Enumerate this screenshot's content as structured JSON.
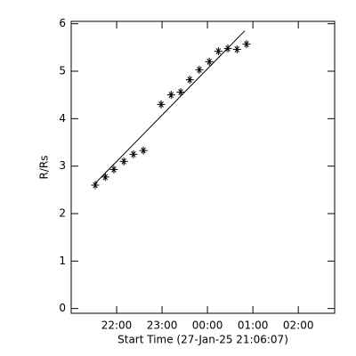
{
  "chart_data": {
    "type": "scatter",
    "y_label": "R/Rs",
    "x_label": "Start Time (27-Jan-25 21:06:07)",
    "series": [
      {
        "color": "#000000",
        "x": [
          21.53,
          21.75,
          21.94,
          22.16,
          22.37,
          22.59,
          22.98,
          23.2,
          23.41,
          23.61,
          23.82,
          24.04,
          24.24,
          24.45,
          24.65,
          24.86
        ],
        "values": [
          2.6,
          2.77,
          2.93,
          3.1,
          3.25,
          3.33,
          4.3,
          4.5,
          4.56,
          4.82,
          5.03,
          5.2,
          5.42,
          5.48,
          5.46,
          5.57
        ]
      }
    ],
    "fit": {
      "color": "#000000",
      "x": [
        21.51,
        24.82
      ],
      "values": [
        2.62,
        5.85
      ]
    },
    "xlim": [
      21.0,
      26.8
    ],
    "ylim": [
      -0.1,
      6.05
    ],
    "xticks": [
      {
        "value": 22,
        "label": "22:00"
      },
      {
        "value": 23,
        "label": "23:00"
      },
      {
        "value": 24,
        "label": "00:00"
      },
      {
        "value": 25,
        "label": "01:00"
      },
      {
        "value": 26,
        "label": "02:00"
      }
    ],
    "yticks": [
      0,
      1,
      2,
      3,
      4,
      5,
      6
    ]
  }
}
